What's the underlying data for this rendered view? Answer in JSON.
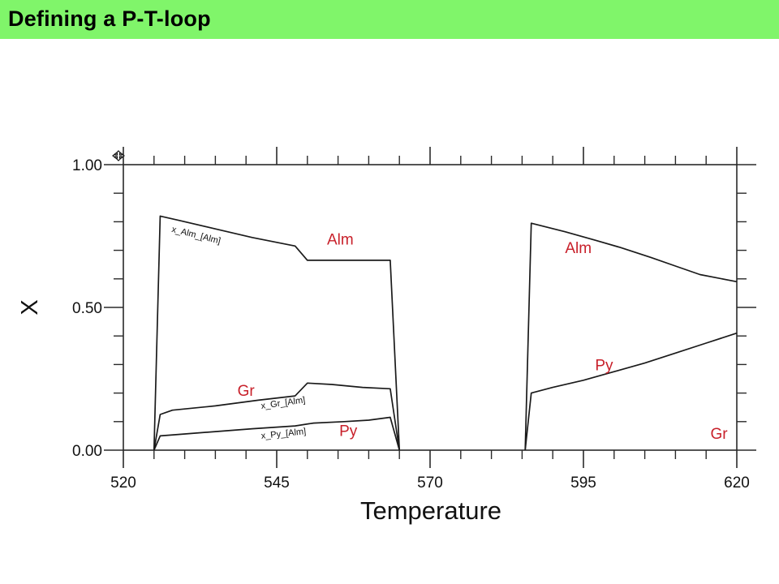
{
  "slide": {
    "title": "Defining a P-T-loop",
    "title_bar_color": "#80f56a"
  },
  "chart_data": {
    "type": "line",
    "xlabel": "Temperature",
    "ylabel": "X",
    "xlim": [
      520,
      620
    ],
    "ylim": [
      0,
      1
    ],
    "x_ticks": [
      520,
      545,
      570,
      595,
      620
    ],
    "x_tick_labels": [
      "520",
      "545",
      "570",
      "595",
      "620"
    ],
    "y_ticks": [
      0,
      0.5,
      1
    ],
    "y_tick_labels": [
      "0.00",
      "0.50",
      "1.00"
    ],
    "x_minor_ticks": [
      525,
      530,
      535,
      540,
      550,
      555,
      560,
      565,
      575,
      580,
      585,
      590,
      600,
      605,
      610,
      615
    ],
    "y_minor_ticks": [
      0.1,
      0.2,
      0.3,
      0.4,
      0.6,
      0.7,
      0.8,
      0.9
    ],
    "grid": false,
    "series": [
      {
        "name": "x_Alm_[Alm]",
        "color": "#1a1a1a",
        "points": [
          [
            525,
            0
          ],
          [
            526,
            0.82
          ],
          [
            529,
            0.805
          ],
          [
            535,
            0.775
          ],
          [
            541,
            0.745
          ],
          [
            548,
            0.715
          ],
          [
            550,
            0.665
          ],
          [
            554,
            0.665
          ],
          [
            559,
            0.665
          ],
          [
            563.5,
            0.665
          ],
          [
            565,
            0
          ]
        ]
      },
      {
        "name": "x_Gr_[Alm]",
        "color": "#1a1a1a",
        "points": [
          [
            525,
            0
          ],
          [
            526,
            0.125
          ],
          [
            528,
            0.14
          ],
          [
            535,
            0.155
          ],
          [
            542,
            0.175
          ],
          [
            548,
            0.19
          ],
          [
            550,
            0.235
          ],
          [
            554,
            0.23
          ],
          [
            559,
            0.22
          ],
          [
            563.5,
            0.215
          ],
          [
            565,
            0
          ]
        ]
      },
      {
        "name": "x_Py_[Alm]",
        "color": "#1a1a1a",
        "points": [
          [
            525,
            0
          ],
          [
            526,
            0.05
          ],
          [
            529,
            0.055
          ],
          [
            535,
            0.065
          ],
          [
            541,
            0.075
          ],
          [
            548,
            0.085
          ],
          [
            551,
            0.095
          ],
          [
            556,
            0.1
          ],
          [
            560,
            0.105
          ],
          [
            563.5,
            0.115
          ],
          [
            565,
            0
          ]
        ]
      },
      {
        "name": "",
        "color": "#1a1a1a",
        "points": [
          [
            585.5,
            0
          ],
          [
            586.5,
            0.795
          ],
          [
            592,
            0.765
          ],
          [
            597,
            0.735
          ],
          [
            601,
            0.71
          ],
          [
            606,
            0.675
          ],
          [
            610,
            0.645
          ],
          [
            614,
            0.615
          ],
          [
            620,
            0.59
          ]
        ]
      },
      {
        "name": "",
        "color": "#1a1a1a",
        "points": [
          [
            585.5,
            0
          ],
          [
            586.5,
            0.2
          ],
          [
            590,
            0.22
          ],
          [
            595,
            0.245
          ],
          [
            600,
            0.275
          ],
          [
            605,
            0.305
          ],
          [
            610,
            0.34
          ],
          [
            615,
            0.375
          ],
          [
            620,
            0.41
          ]
        ]
      }
    ],
    "curve_labels": [
      {
        "text": "x_Alm_[Alm]",
        "at": [
          527.8,
          0.765
        ],
        "angle": 14
      },
      {
        "text": "x_Gr_[Alm]",
        "at": [
          542.5,
          0.145
        ],
        "angle": -8
      },
      {
        "text": "x_Py_[Alm]",
        "at": [
          542.5,
          0.04
        ],
        "angle": -6
      }
    ],
    "annotations": [
      {
        "text": "Alm",
        "at": [
          553.2,
          0.72
        ],
        "color": "#c8202a"
      },
      {
        "text": "Gr",
        "at": [
          538.6,
          0.19
        ],
        "color": "#c8202a"
      },
      {
        "text": "Py",
        "at": [
          555.2,
          0.05
        ],
        "color": "#c8202a"
      },
      {
        "text": "Alm",
        "at": [
          592,
          0.69
        ],
        "color": "#c8202a"
      },
      {
        "text": "Py",
        "at": [
          596.9,
          0.28
        ],
        "color": "#c8202a"
      },
      {
        "text": "Gr",
        "at": [
          615.7,
          0.04
        ],
        "color": "#c8202a"
      }
    ],
    "corner_icon": "move-cross-icon"
  }
}
